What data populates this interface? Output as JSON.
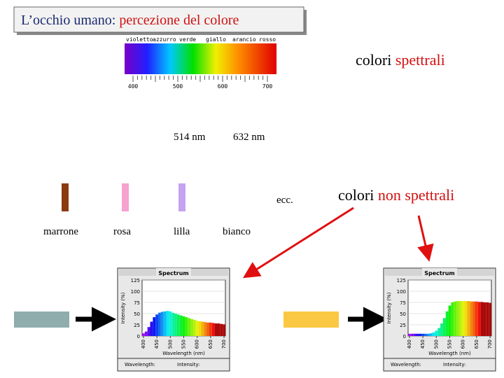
{
  "title": {
    "part1": "L’occhio umano:",
    "part2": "percezione del colore"
  },
  "spectrum_bar": {
    "color_names": [
      "violetto",
      "azzurro",
      "verde",
      "giallo",
      "arancio",
      "rosso"
    ],
    "ticks": [
      400,
      500,
      600,
      700
    ]
  },
  "spectral_label": {
    "part1": "colori",
    "part2": "spettrali"
  },
  "wavelengths": [
    "514 nm",
    "632 nm"
  ],
  "swatches": [
    {
      "label": "marrone",
      "color": "#8b3a10"
    },
    {
      "label": "rosa",
      "color": "#f7a2cf"
    },
    {
      "label": "lilla",
      "color": "#c6a2f0"
    },
    {
      "label": "bianco"
    }
  ],
  "etc": "ecc.",
  "non_spectral_label": {
    "part1": "colori",
    "part2": "non spettrali"
  },
  "spectrum_windows": [
    {
      "title": "Spectrum",
      "swatch_color": "#8fadac",
      "y_label": "Intensity (%)",
      "x_label": "Wavelength (nm)",
      "footer_left": "Wavelength:",
      "footer_right": "Intensity:",
      "ylim": [
        0,
        125
      ],
      "yticks": [
        0,
        25,
        50,
        75,
        100,
        125
      ],
      "xlim": [
        395,
        705
      ],
      "xticks": [
        400,
        450,
        500,
        550,
        600,
        650,
        700
      ],
      "x": [
        400,
        410,
        420,
        430,
        440,
        450,
        460,
        470,
        480,
        490,
        500,
        510,
        520,
        530,
        540,
        550,
        560,
        570,
        580,
        590,
        600,
        610,
        620,
        630,
        640,
        650,
        660,
        670,
        680,
        690,
        700
      ],
      "values": [
        6,
        10,
        20,
        32,
        42,
        48,
        52,
        54,
        55,
        56,
        55,
        52,
        50,
        48,
        46,
        44,
        42,
        40,
        38,
        36,
        34,
        33,
        32,
        31,
        30,
        30,
        29,
        28,
        28,
        27,
        26
      ]
    },
    {
      "title": "Spectrum",
      "swatch_color": "#fbc843",
      "y_label": "Intensity (%)",
      "x_label": "Wavelength (nm)",
      "footer_left": "Wavelength:",
      "footer_right": "Intensity:",
      "ylim": [
        0,
        125
      ],
      "yticks": [
        0,
        25,
        50,
        75,
        100,
        125
      ],
      "xlim": [
        395,
        705
      ],
      "xticks": [
        400,
        450,
        500,
        550,
        600,
        650,
        700
      ],
      "x": [
        400,
        410,
        420,
        430,
        440,
        450,
        460,
        470,
        480,
        490,
        500,
        510,
        520,
        530,
        540,
        550,
        560,
        570,
        580,
        590,
        600,
        610,
        620,
        630,
        640,
        650,
        660,
        670,
        680,
        690,
        700
      ],
      "values": [
        5,
        5,
        5,
        5,
        5,
        5,
        5,
        5,
        6,
        8,
        12,
        18,
        28,
        40,
        55,
        68,
        75,
        77,
        78,
        78,
        78,
        78,
        78,
        77,
        77,
        77,
        76,
        76,
        75,
        75,
        74
      ]
    }
  ]
}
